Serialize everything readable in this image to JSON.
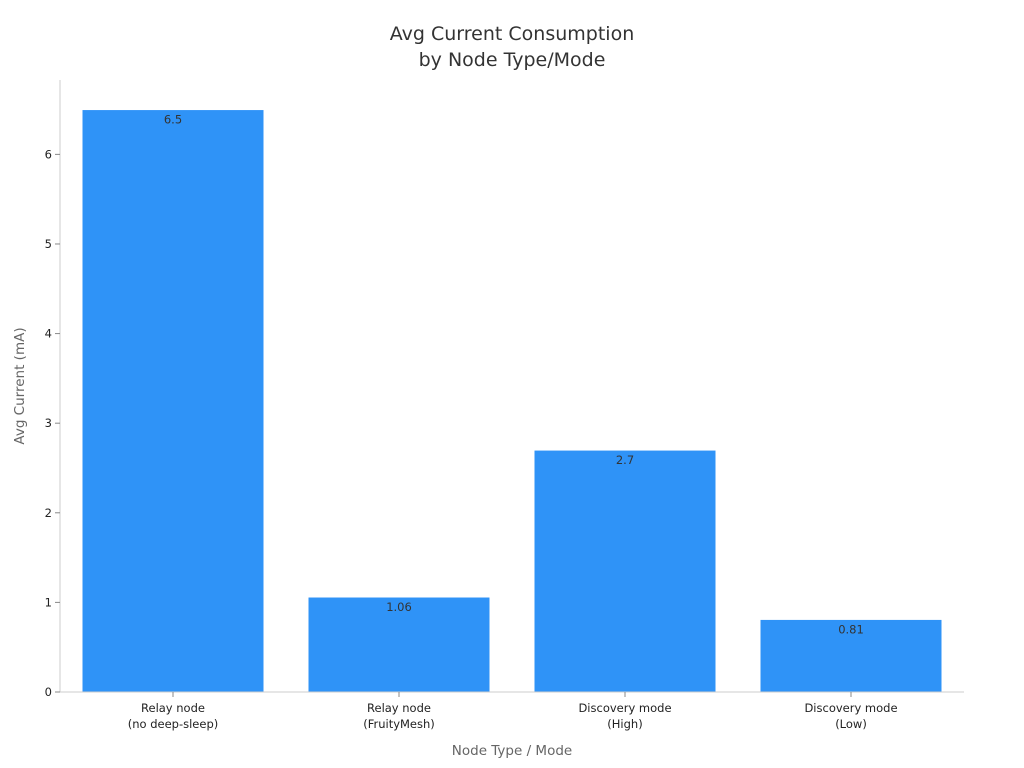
{
  "chart_data": {
    "type": "bar",
    "title": [
      "Avg Current Consumption",
      "by Node Type/Mode"
    ],
    "xlabel": "Node Type / Mode",
    "ylabel": "Avg Current (mA)",
    "categories": [
      [
        "Relay node",
        "(no deep-sleep)"
      ],
      [
        "Relay node",
        "(FruityMesh)"
      ],
      [
        "Discovery mode",
        "(High)"
      ],
      [
        "Discovery mode",
        "(Low)"
      ]
    ],
    "values": [
      6.5,
      1.06,
      2.7,
      0.81
    ],
    "data_labels": [
      "6.5",
      "1.06",
      "2.7",
      "0.81"
    ],
    "yticks": [
      0,
      1,
      2,
      3,
      4,
      5,
      6
    ],
    "ylim": [
      0,
      6.83
    ],
    "grid": false,
    "legend": "none",
    "colors": {
      "bar": "#2f93f7",
      "bar_edge": "#ffffff",
      "axis": "#cccccc",
      "title": "#333333",
      "axis_label": "#666666",
      "tick_label": "#222222",
      "data_label": "#333333"
    }
  }
}
